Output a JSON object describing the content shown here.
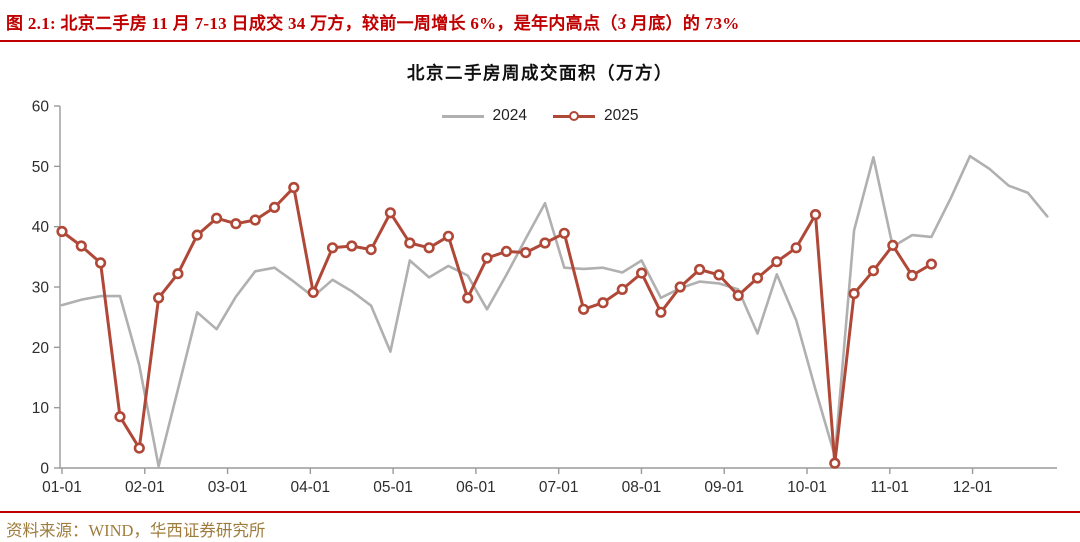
{
  "header": {
    "title": "图 2.1: 北京二手房 11 月 7-13 日成交 34 万方，较前一周增长 6%，是年内高点（3 月底）的 73%",
    "accent_color": "#C00000"
  },
  "footer": {
    "source": "资料来源：WIND，华西证券研究所",
    "color": "#9E7C3C"
  },
  "chart_data": {
    "type": "line",
    "title": "北京二手房周成交面积（万方）",
    "xlabel": "",
    "ylabel": "",
    "ylim": [
      0,
      60
    ],
    "yticks": [
      0,
      10,
      20,
      30,
      40,
      50,
      60
    ],
    "xticks": [
      "01-01",
      "02-01",
      "03-01",
      "04-01",
      "05-01",
      "06-01",
      "07-01",
      "08-01",
      "09-01",
      "10-01",
      "11-01",
      "12-01"
    ],
    "grid": false,
    "legend_position": "top-center",
    "x_unit": "week",
    "axis_color": "#9a9a9a",
    "series": [
      {
        "name": "2024",
        "color": "#b0b0b0",
        "marker": "none",
        "values": [
          27.0,
          27.9,
          28.5,
          28.5,
          17.0,
          0.3,
          13.0,
          25.8,
          23.0,
          28.4,
          32.6,
          33.2,
          30.9,
          28.4,
          31.2,
          29.3,
          26.9,
          19.3,
          34.4,
          31.6,
          33.5,
          31.9,
          26.3,
          32.0,
          38.0,
          43.9,
          33.2,
          33.0,
          33.2,
          32.4,
          34.4,
          28.2,
          29.8,
          30.9,
          30.6,
          29.6,
          22.3,
          32.1,
          24.5,
          13.0,
          2.0,
          39.4,
          51.5,
          36.7,
          38.6,
          38.3,
          44.7,
          51.7,
          49.6,
          46.8,
          45.6,
          41.7
        ]
      },
      {
        "name": "2025",
        "color": "#B04838",
        "marker": "circle",
        "values": [
          39.2,
          36.8,
          34.0,
          8.5,
          3.3,
          28.2,
          32.2,
          38.6,
          41.4,
          40.5,
          41.1,
          43.2,
          46.5,
          29.1,
          36.5,
          36.8,
          36.2,
          42.3,
          37.3,
          36.5,
          38.4,
          28.2,
          34.8,
          35.9,
          35.7,
          37.3,
          38.9,
          26.3,
          27.4,
          29.6,
          32.3,
          25.8,
          30.0,
          32.9,
          32.0,
          28.6,
          31.5,
          34.2,
          36.5,
          42.0,
          0.8,
          28.9,
          32.7,
          36.9,
          31.9,
          33.8
        ]
      }
    ]
  }
}
